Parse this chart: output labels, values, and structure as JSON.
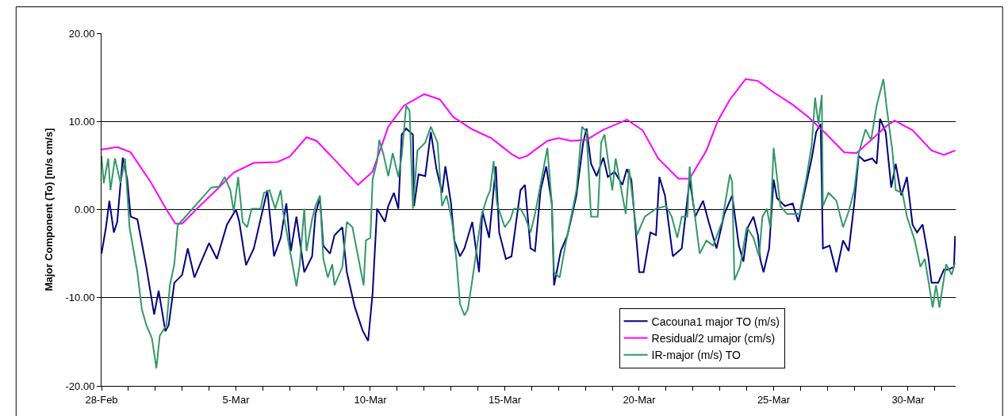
{
  "chart_data": {
    "type": "line",
    "ylabel": "Major Component (To) [m/s cm/s]",
    "xlim": [
      "--02-28",
      "--03-31T18:30"
    ],
    "xticks": [
      {
        "value": "--02-28",
        "label": "28-Feb"
      },
      {
        "value": "--03-01",
        "label": null
      },
      {
        "value": "--03-02",
        "label": null
      },
      {
        "value": "--03-03",
        "label": null
      },
      {
        "value": "--03-04",
        "label": null
      },
      {
        "value": "--03-05",
        "label": "5-Mar"
      },
      {
        "value": "--03-06",
        "label": null
      },
      {
        "value": "--03-07",
        "label": null
      },
      {
        "value": "--03-08",
        "label": null
      },
      {
        "value": "--03-09",
        "label": null
      },
      {
        "value": "--03-10",
        "label": "10-Mar"
      },
      {
        "value": "--03-11",
        "label": null
      },
      {
        "value": "--03-12",
        "label": null
      },
      {
        "value": "--03-13",
        "label": null
      },
      {
        "value": "--03-14",
        "label": null
      },
      {
        "value": "--03-15",
        "label": "15-Mar"
      },
      {
        "value": "--03-16",
        "label": null
      },
      {
        "value": "--03-17",
        "label": null
      },
      {
        "value": "--03-18",
        "label": null
      },
      {
        "value": "--03-19",
        "label": null
      },
      {
        "value": "--03-20",
        "label": "20-Mar"
      },
      {
        "value": "--03-21",
        "label": null
      },
      {
        "value": "--03-22",
        "label": null
      },
      {
        "value": "--03-23",
        "label": null
      },
      {
        "value": "--03-24",
        "label": null
      },
      {
        "value": "--03-25",
        "label": "25-Mar"
      },
      {
        "value": "--03-26",
        "label": null
      },
      {
        "value": "--03-27",
        "label": null
      },
      {
        "value": "--03-28",
        "label": null
      },
      {
        "value": "--03-29",
        "label": null
      },
      {
        "value": "--03-30",
        "label": "30-Mar"
      },
      {
        "value": "--03-31",
        "label": null
      }
    ],
    "ylim": [
      -20,
      20
    ],
    "yticks": [
      {
        "value": -20,
        "label": "-20.00"
      },
      {
        "value": -10,
        "label": "-10.00"
      },
      {
        "value": 0,
        "label": "0.00"
      },
      {
        "value": 10,
        "label": "10.00"
      },
      {
        "value": 20,
        "label": "20.00"
      }
    ],
    "grid": "y",
    "legend": "bottom right",
    "marker": "none",
    "line_style": "solid",
    "series": [
      {
        "name": "Cacouna1 major TO (m/s)",
        "color": "#000080",
        "x": [
          "--02-28T00:00",
          "--02-28T04:00",
          "--02-28T07:00",
          "--02-28T11:00",
          "--02-28T14:00",
          "--02-28T19:00",
          "--02-28T23:00",
          "--03-01T02:00",
          "--03-01T08:00",
          "--03-01T16:00",
          "--03-01T23:00",
          "--03-02T03:00",
          "--03-02T09:00",
          "--03-02T12:00",
          "--03-02T17:00",
          "--03-03T00:00",
          "--03-03T05:00",
          "--03-03T11:00",
          "--03-03T16:00",
          "--03-04T00:00",
          "--03-04T07:00",
          "--03-04T16:00",
          "--03-05T00:00",
          "--03-05T03:00",
          "--03-05T09:00",
          "--03-05T16:00",
          "--03-06T04:00",
          "--03-06T10:00",
          "--03-06T16:00",
          "--03-06T21:00",
          "--03-07T01:00",
          "--03-07T06:00",
          "--03-07T13:00",
          "--03-07T20:00",
          "--03-07T23:00",
          "--03-08T03:00",
          "--03-08T06:00",
          "--03-08T12:00",
          "--03-08T16:00",
          "--03-08T23:00",
          "--03-09T03:00",
          "--03-09T10:00",
          "--03-09T17:00",
          "--03-09T22:00",
          "--03-10T02:00",
          "--03-10T06:00",
          "--03-10T13:00",
          "--03-10T16:00",
          "--03-10T21:00",
          "--03-11T01:00",
          "--03-11T04:00",
          "--03-11T08:00",
          "--03-11T14:00",
          "--03-11T15:00",
          "--03-11T19:00",
          "--03-12T01:00",
          "--03-12T06:00",
          "--03-12T11:00",
          "--03-12T16:00",
          "--03-12T19:00",
          "--03-13T00:00",
          "--03-13T03:00",
          "--03-13T08:00",
          "--03-13T12:00",
          "--03-13T19:00",
          "--03-14T01:00",
          "--03-14T04:00",
          "--03-14T10:00",
          "--03-14T16:00",
          "--03-14T19:00",
          "--03-15T01:00",
          "--03-15T06:00",
          "--03-15T14:00",
          "--03-15T18:00",
          "--03-15T23:00",
          "--03-16T03:00",
          "--03-16T08:00",
          "--03-16T13:00",
          "--03-16T18:00",
          "--03-16T20:00",
          "--03-17T02:00",
          "--03-17T08:00",
          "--03-17T16:00",
          "--03-17T22:00",
          "--03-18T01:00",
          "--03-18T05:00",
          "--03-18T10:00",
          "--03-18T16:00",
          "--03-18T20:00",
          "--03-19T02:00",
          "--03-19T09:00",
          "--03-19T13:00",
          "--03-19T17:00",
          "--03-20T00:00",
          "--03-20T04:00",
          "--03-20T10:00",
          "--03-20T15:00",
          "--03-20T18:00",
          "--03-20T23:00",
          "--03-21T06:00",
          "--03-21T14:00",
          "--03-21T21:00",
          "--03-22T02:00",
          "--03-22T09:00",
          "--03-22T14:00",
          "--03-22T21:00",
          "--03-23T04:00",
          "--03-23T11:00",
          "--03-23T17:00",
          "--03-23T21:00",
          "--03-24T01:00",
          "--03-24T06:00",
          "--03-24T10:00",
          "--03-24T12:00",
          "--03-24T15:00",
          "--03-24T20:00",
          "--03-25T00:00",
          "--03-25T03:00",
          "--03-25T10:00",
          "--03-25T17:00",
          "--03-25T22:00",
          "--03-26T05:00",
          "--03-26T10:00",
          "--03-26T14:00",
          "--03-26T18:00",
          "--03-26T20:00",
          "--03-27T02:00",
          "--03-27T08:00",
          "--03-27T14:00",
          "--03-27T19:00",
          "--03-28T00:00",
          "--03-28T04:00",
          "--03-28T09:00",
          "--03-28T16:00",
          "--03-28T20:00",
          "--03-28T23:00",
          "--03-29T04:00",
          "--03-29T09:00",
          "--03-29T13:00",
          "--03-29T18:00",
          "--03-29T23:00",
          "--03-30T04:00",
          "--03-30T08:00",
          "--03-30T13:00",
          "--03-30T18:00",
          "--03-30T21:00",
          "--03-31T03:00",
          "--03-31T08:00",
          "--03-31T12:00",
          "--03-31T17:00",
          "--03-31T18:00"
        ],
        "values": [
          -5.0,
          -2.0,
          1.0,
          -2.6,
          -1.4,
          5.9,
          3.4,
          -0.8,
          -1.1,
          -6.5,
          -11.9,
          -9.2,
          -13.8,
          -13.1,
          -8.3,
          -7.4,
          -4.4,
          -7.7,
          -6.2,
          -3.8,
          -5.6,
          -1.7,
          0,
          -1.4,
          -6.3,
          -4.4,
          2.2,
          -5.3,
          -3.2,
          0.7,
          -4.7,
          -0.8,
          -7.1,
          -5.3,
          -0.5,
          1.3,
          -4.1,
          -5.0,
          -2.9,
          -2.0,
          -7.1,
          -11.0,
          -13.7,
          -14.9,
          -9.5,
          0.1,
          -1.4,
          0.4,
          1.9,
          0.1,
          8.5,
          9.2,
          8.5,
          0.4,
          4.0,
          3.8,
          8.8,
          4.6,
          1.9,
          4.9,
          0.7,
          -3.5,
          -5.3,
          -4.4,
          -1.4,
          -7.1,
          -0.2,
          -3.2,
          4.9,
          -2.6,
          -5.6,
          -5.3,
          2.2,
          2.8,
          -4.4,
          -4.7,
          2.2,
          4.9,
          0.7,
          -8.6,
          -4.7,
          -2.9,
          1.6,
          7.6,
          9.2,
          5.2,
          3.8,
          5.9,
          3.7,
          4.3,
          2.8,
          4.6,
          3.4,
          -7.1,
          -7.1,
          -2.6,
          -2.9,
          3.7,
          1.6,
          -5.3,
          -4.4,
          3.4,
          -0.8,
          1.0,
          -1.4,
          -4.4,
          -0.5,
          1.6,
          -4.1,
          -5.9,
          -2.0,
          -0.8,
          -2.9,
          -5.6,
          -7.1,
          -4.4,
          3.4,
          1.3,
          0.4,
          0.7,
          -1.4,
          2.8,
          5.8,
          8.8,
          9.7,
          -4.4,
          -4.1,
          -7.1,
          -3.5,
          -4.7,
          0.7,
          6.1,
          5.5,
          5.8,
          5.2,
          10.3,
          8.8,
          2.5,
          5.2,
          1.6,
          3.7,
          -1.7,
          -2.6,
          -1.7,
          -5.3,
          -8.3,
          -8.3,
          -6.8,
          -6.8,
          -6.5,
          -3.0
        ]
      },
      {
        "name": "Residual/2 umajor (cm/s)",
        "color": "#ff00ff",
        "x": [
          "--02-28T00:00",
          "--02-28T14:00",
          "--03-01T02:00",
          "--03-01T20:00",
          "--03-02T10:00",
          "--03-02T18:00",
          "--03-03T00:00",
          "--03-03T14:00",
          "--03-04T08:00",
          "--03-04T22:00",
          "--03-05T16:00",
          "--03-06T13:00",
          "--03-07T00:00",
          "--03-07T15:00",
          "--03-08T00:00",
          "--03-08T18:00",
          "--03-09T13:00",
          "--03-10T02:00",
          "--03-10T16:00",
          "--03-11T06:00",
          "--03-12T00:00",
          "--03-12T14:00",
          "--03-13T02:00",
          "--03-13T19:00",
          "--03-14T12:00",
          "--03-15T06:00",
          "--03-15T13:00",
          "--03-15T20:00",
          "--03-16T14:00",
          "--03-17T00:00",
          "--03-17T11:00",
          "--03-18T01:00",
          "--03-18T15:00",
          "--03-19T13:00",
          "--03-20T03:00",
          "--03-20T17:00",
          "--03-21T11:00",
          "--03-21T21:00",
          "--03-22T12:00",
          "--03-22T22:00",
          "--03-23T09:00",
          "--03-23T23:00",
          "--03-24T10:00",
          "--03-25T00:00",
          "--03-25T17:00",
          "--03-26T07:00",
          "--03-26T22:00",
          "--03-27T15:00",
          "--03-28T02:00",
          "--03-28T16:00",
          "--03-29T05:00",
          "--03-29T12:00",
          "--03-30T04:00",
          "--03-30T21:00",
          "--03-31T08:00",
          "--03-31T18:00"
        ],
        "values": [
          6.8,
          7.1,
          6.5,
          3.1,
          0,
          -1.6,
          -1.6,
          0.2,
          2.4,
          4.2,
          5.3,
          5.4,
          6.0,
          8.2,
          7.8,
          5.4,
          2.8,
          4.3,
          9.4,
          11.8,
          13.1,
          12.5,
          10.5,
          9.1,
          8.1,
          6.3,
          5.8,
          6.1,
          7.8,
          8.1,
          7.8,
          7.9,
          9.0,
          10.2,
          9.0,
          5.8,
          3.5,
          3.5,
          6.7,
          10.0,
          12.5,
          14.8,
          14.6,
          13.3,
          11.9,
          10.5,
          8.7,
          6.5,
          6.4,
          8.0,
          9.5,
          10.1,
          9.0,
          6.7,
          6.2,
          6.7
        ]
      },
      {
        "name": "IR-major (m/s) TO",
        "color": "#339966",
        "x": [
          "--02-28T00:00",
          "--02-28T02:00",
          "--02-28T06:00",
          "--02-28T08:00",
          "--02-28T12:00",
          "--02-28T17:00",
          "--02-28T21:00",
          "--03-01T01:00",
          "--03-01T08:00",
          "--03-01T12:00",
          "--03-01T16:00",
          "--03-01T21:00",
          "--03-02T01:00",
          "--03-02T04:00",
          "--03-02T10:00",
          "--03-02T13:00",
          "--03-02T17:00",
          "--03-02T20:00",
          "--03-04T02:00",
          "--03-04T09:00",
          "--03-04T14:00",
          "--03-04T19:00",
          "--03-04T22:00",
          "--03-05T02:00",
          "--03-05T06:00",
          "--03-05T10:00",
          "--03-05T14:00",
          "--03-05T22:00",
          "--03-06T01:00",
          "--03-06T06:00",
          "--03-06T11:00",
          "--03-06T16:00",
          "--03-06T18:00",
          "--03-06T23:00",
          "--03-07T06:00",
          "--03-07T09:00",
          "--03-07T13:00",
          "--03-07T15:00",
          "--03-07T20:00",
          "--03-07T23:00",
          "--03-08T03:00",
          "--03-08T06:00",
          "--03-08T10:00",
          "--03-08T14:00",
          "--03-08T16:00",
          "--03-08T23:00",
          "--03-09T03:00",
          "--03-09T08:00",
          "--03-09T13:00",
          "--03-09T18:00",
          "--03-09T20:00",
          "--03-10T00:00",
          "--03-10T02:00",
          "--03-10T06:00",
          "--03-10T08:00",
          "--03-10T12:00",
          "--03-10T16:00",
          "--03-10T20:00",
          "--03-11T01:00",
          "--03-11T04:00",
          "--03-11T08:00",
          "--03-11T11:00",
          "--03-11T14:00",
          "--03-11T18:00",
          "--03-12T01:00",
          "--03-12T06:00",
          "--03-12T12:00",
          "--03-12T16:00",
          "--03-12T20:00",
          "--03-13T01:00",
          "--03-13T05:00",
          "--03-13T08:00",
          "--03-13T12:00",
          "--03-13T15:00",
          "--03-13T19:00",
          "--03-13T22:00",
          "--03-14T03:00",
          "--03-14T08:00",
          "--03-14T11:00",
          "--03-14T14:00",
          "--03-14T17:00",
          "--03-15T00:00",
          "--03-15T05:00",
          "--03-15T08:00",
          "--03-15T14:00",
          "--03-15T18:00",
          "--03-15T23:00",
          "--03-16T03:00",
          "--03-16T07:00",
          "--03-16T14:00",
          "--03-16T18:00",
          "--03-16T20:00",
          "--03-17T01:00",
          "--03-17T06:00",
          "--03-17T16:00",
          "--03-17T21:00",
          "--03-18T01:00",
          "--03-18T05:00",
          "--03-18T11:00",
          "--03-18T14:00",
          "--03-18T17:00",
          "--03-19T00:00",
          "--03-19T03:00",
          "--03-19T12:00",
          "--03-19T15:00",
          "--03-19T22:00",
          "--03-20T05:00",
          "--03-20T15:00",
          "--03-21T00:00",
          "--03-21T05:00",
          "--03-21T10:00",
          "--03-21T14:00",
          "--03-21T19:00",
          "--03-21T21:00",
          "--03-22T00:00",
          "--03-22T06:00",
          "--03-22T12:00",
          "--03-22T18:00",
          "--03-23T02:00",
          "--03-23T09:00",
          "--03-23T11:00",
          "--03-23T13:00",
          "--03-23T18:00",
          "--03-24T00:00",
          "--03-24T06:00",
          "--03-24T11:00",
          "--03-24T14:00",
          "--03-24T18:00",
          "--03-24T21:00",
          "--03-25T00:00",
          "--03-25T06:00",
          "--03-25T12:00",
          "--03-25T23:00",
          "--03-26T05:00",
          "--03-26T10:00",
          "--03-26T13:00",
          "--03-26T16:00",
          "--03-26T19:00",
          "--03-26T20:00",
          "--03-27T01:00",
          "--03-27T08:00",
          "--03-27T14:00",
          "--03-27T19:00",
          "--03-28T00:00",
          "--03-28T04:00",
          "--03-28T10:00",
          "--03-28T15:00",
          "--03-28T20:00",
          "--03-29T02:00",
          "--03-29T05:00",
          "--03-29T10:00",
          "--03-29T13:00",
          "--03-29T19:00",
          "--03-29T23:00",
          "--03-30T06:00",
          "--03-30T11:00",
          "--03-30T15:00",
          "--03-30T22:00",
          "--03-31T01:00",
          "--03-31T04:00",
          "--03-31T10:00",
          "--03-31T15:00",
          "--03-31T18:00"
        ],
        "values": [
          6.1,
          3.0,
          5.8,
          2.2,
          5.8,
          3.0,
          5.8,
          -2.0,
          -7.1,
          -11.3,
          -13.1,
          -14.6,
          -18.0,
          -14.3,
          -13.1,
          -8.6,
          -6.2,
          -1.8,
          2.5,
          2.6,
          3.7,
          2.2,
          -0.2,
          3.7,
          -1.4,
          -2.0,
          0.1,
          0.1,
          1.9,
          2.2,
          0.1,
          2.2,
          -0.2,
          -3.8,
          -8.7,
          -6.2,
          0.1,
          -4.7,
          -1.1,
          0.4,
          1.6,
          -5.6,
          -7.7,
          -6.2,
          -8.6,
          -6.5,
          -1.4,
          -2.0,
          -5.3,
          -8.6,
          -3.5,
          -3.2,
          3.4,
          5.5,
          7.9,
          6.1,
          3.8,
          6.4,
          3.7,
          6.1,
          11.8,
          11.2,
          0.1,
          6.7,
          7.6,
          9.4,
          7.6,
          0.4,
          1.6,
          -1.4,
          -5.9,
          -10.7,
          -12.0,
          -11.3,
          -8.0,
          -5.3,
          -0.8,
          1.3,
          2.2,
          5.5,
          0.7,
          -2.0,
          -1.1,
          0.1,
          0.1,
          -0.8,
          -2.6,
          -0.5,
          2.2,
          7.0,
          0.7,
          -7.1,
          -7.7,
          -4.1,
          2.2,
          9.4,
          8.8,
          -0.8,
          -0.8,
          7.6,
          8.5,
          2.2,
          5.8,
          -0.5,
          4.6,
          -2.9,
          -0.8,
          0.1,
          0.4,
          -0.8,
          -3.2,
          -0.8,
          -0.8,
          4.9,
          1.0,
          -5.0,
          -3.5,
          -4.1,
          -1.4,
          4.0,
          3.1,
          -8.0,
          -6.5,
          -2.0,
          -3.2,
          -5.3,
          -0.8,
          0.1,
          -2.0,
          7.0,
          0.4,
          -0.5,
          -0.5,
          3.4,
          7.3,
          12.7,
          9.7,
          13.0,
          0.4,
          1.9,
          1.0,
          -2.0,
          -0.2,
          2.2,
          6.4,
          9.1,
          7.9,
          11.8,
          14.8,
          11.5,
          6.7,
          2.2,
          1.9,
          -0.8,
          -3.5,
          -6.5,
          -5.6,
          -11.1,
          -8.6,
          -11.1,
          -6.2,
          -7.4,
          -6.0
        ]
      }
    ]
  }
}
